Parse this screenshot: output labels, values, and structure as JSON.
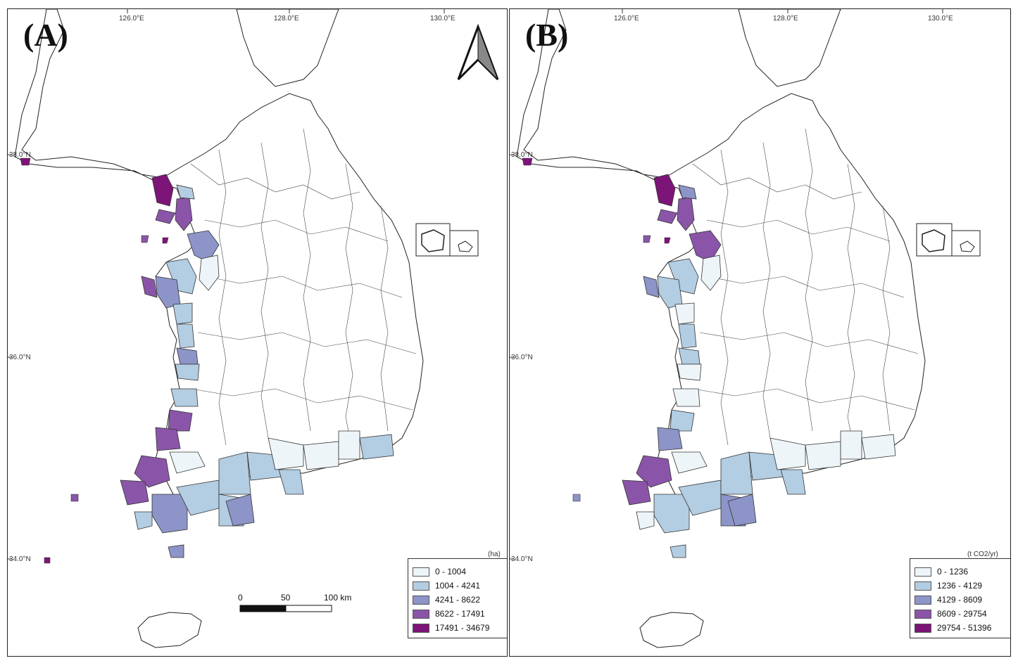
{
  "panels": [
    {
      "id": "A",
      "label": "(A)",
      "unit": "(ha)",
      "legend": [
        {
          "label": "0 - 1004",
          "color": "#eef5f9"
        },
        {
          "label": "1004 - 4241",
          "color": "#b3cde2"
        },
        {
          "label": "4241 - 8622",
          "color": "#8c94c8"
        },
        {
          "label": "8622 - 17491",
          "color": "#8a55a8"
        },
        {
          "label": "17491 - 34679",
          "color": "#7d1578"
        }
      ]
    },
    {
      "id": "B",
      "label": "(B)",
      "unit": "(t CO2/yr)",
      "legend": [
        {
          "label": "0 - 1236",
          "color": "#eef5f9"
        },
        {
          "label": "1236 - 4129",
          "color": "#b3cde2"
        },
        {
          "label": "4129 - 8609",
          "color": "#8c94c8"
        },
        {
          "label": "8609 - 29754",
          "color": "#8a55a8"
        },
        {
          "label": "29754 - 51396",
          "color": "#7d1578"
        }
      ]
    }
  ],
  "graticule": {
    "lon_labels": [
      "126.0°E",
      "128.0°E",
      "130.0°E"
    ],
    "lat_labels": [
      "38.0°N",
      "36.0°N",
      "34.0°N"
    ]
  },
  "scale_bar": {
    "labels": [
      "0",
      "50",
      "100 km"
    ]
  },
  "north_arrow": {
    "present": true
  }
}
